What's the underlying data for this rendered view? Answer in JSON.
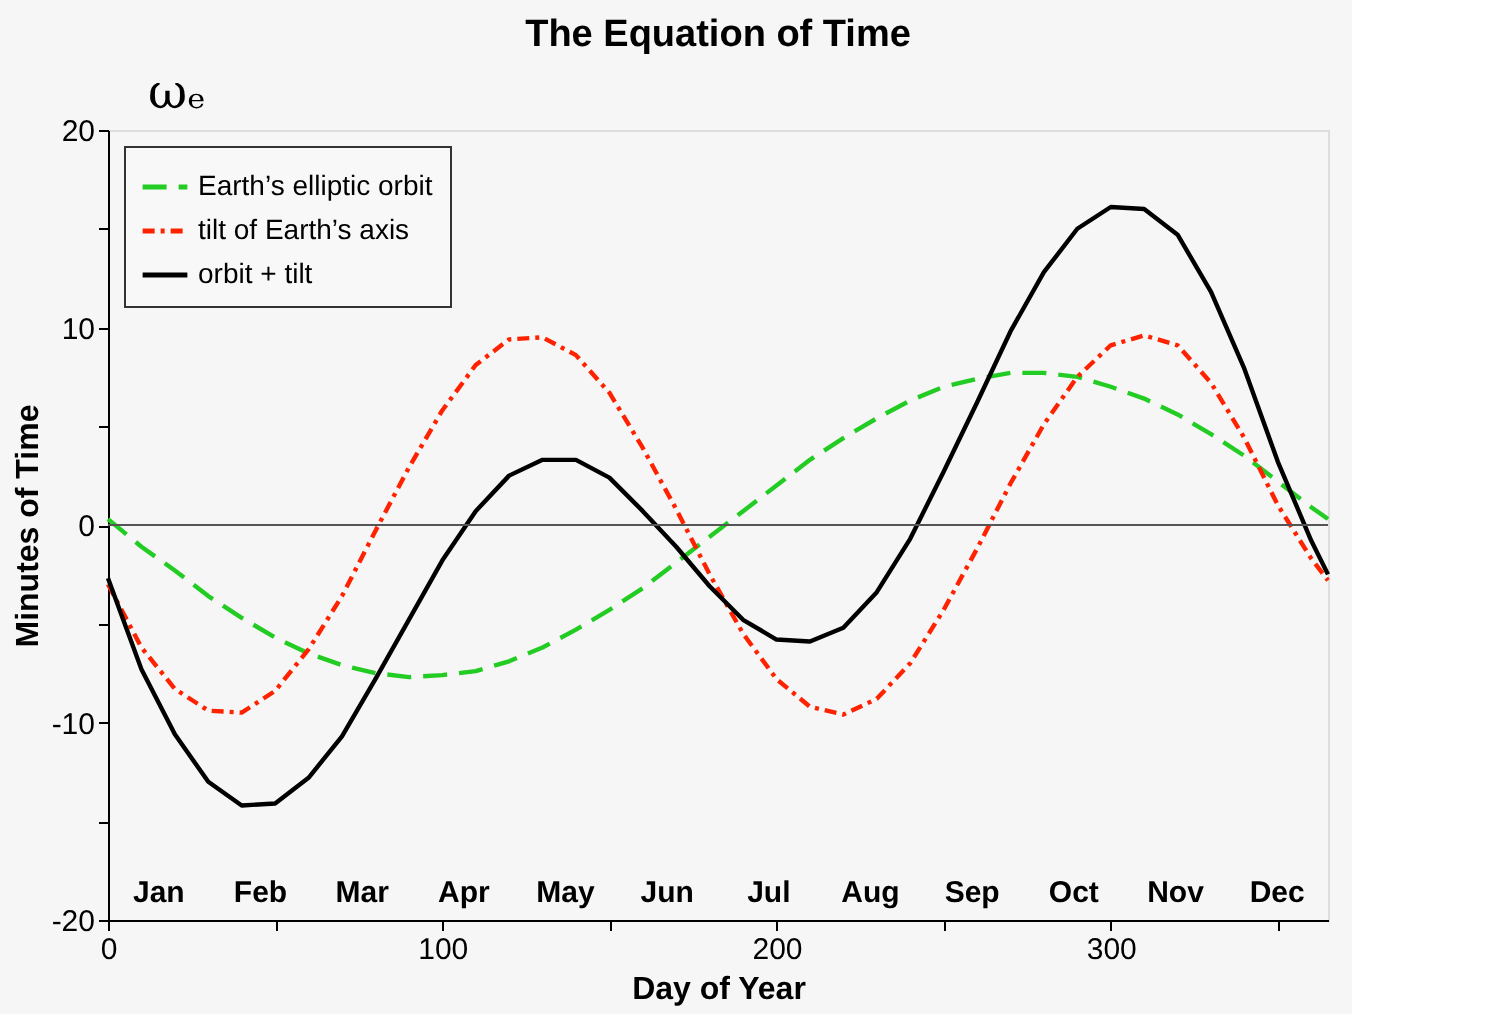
{
  "chart_data": {
    "type": "line",
    "title": "The Equation of Time",
    "xlabel": "Day of Year",
    "ylabel": "Minutes of Time",
    "x": [
      0,
      10,
      20,
      30,
      40,
      50,
      60,
      70,
      80,
      90,
      100,
      110,
      120,
      130,
      140,
      150,
      160,
      170,
      180,
      190,
      200,
      210,
      220,
      230,
      240,
      250,
      260,
      270,
      280,
      290,
      300,
      310,
      320,
      330,
      340,
      350,
      360,
      365
    ],
    "series": [
      {
        "name": "Earth’s elliptic orbit",
        "color": "#22cc22",
        "line_style": "dashed",
        "values": [
          0.3,
          -1.1,
          -2.3,
          -3.6,
          -4.7,
          -5.7,
          -6.5,
          -7.1,
          -7.5,
          -7.7,
          -7.6,
          -7.4,
          -6.9,
          -6.2,
          -5.3,
          -4.3,
          -3.2,
          -1.9,
          -0.6,
          0.7,
          2.0,
          3.3,
          4.4,
          5.4,
          6.3,
          7.0,
          7.4,
          7.7,
          7.7,
          7.5,
          7.0,
          6.4,
          5.6,
          4.6,
          3.5,
          2.2,
          0.9,
          0.3
        ]
      },
      {
        "name": "tilt of Earth’s axis",
        "color": "#ff2200",
        "line_style": "dashdot",
        "values": [
          -3.0,
          -6.2,
          -8.3,
          -9.4,
          -9.5,
          -8.4,
          -6.3,
          -3.6,
          -0.3,
          2.9,
          5.8,
          8.1,
          9.4,
          9.5,
          8.6,
          6.7,
          3.9,
          0.8,
          -2.5,
          -5.5,
          -7.8,
          -9.2,
          -9.6,
          -8.8,
          -7.0,
          -4.3,
          -1.2,
          2.1,
          5.1,
          7.5,
          9.1,
          9.6,
          9.1,
          7.2,
          4.4,
          1.0,
          -1.7,
          -2.8
        ]
      },
      {
        "name": "orbit + tilt",
        "color": "#000000",
        "line_style": "solid",
        "values": [
          -2.7,
          -7.3,
          -10.6,
          -13.0,
          -14.2,
          -14.1,
          -12.8,
          -10.7,
          -7.8,
          -4.8,
          -1.8,
          0.7,
          2.5,
          3.3,
          3.3,
          2.4,
          0.7,
          -1.1,
          -3.1,
          -4.8,
          -5.8,
          -5.9,
          -5.2,
          -3.4,
          -0.7,
          2.7,
          6.2,
          9.8,
          12.8,
          15.0,
          16.1,
          16.0,
          14.7,
          11.8,
          7.9,
          3.2,
          -0.8,
          -2.5
        ]
      }
    ],
    "xlim": [
      0,
      365
    ],
    "xticks": [
      0,
      {
        "value": 50,
        "label": null
      },
      100,
      {
        "value": 150,
        "label": null
      },
      200,
      {
        "value": 250,
        "label": null
      },
      300,
      {
        "value": 350,
        "label": null
      }
    ],
    "ylim": [
      -20,
      20
    ],
    "yticks": [
      -20,
      {
        "value": -15,
        "label": null
      },
      -10,
      {
        "value": -5,
        "label": null
      },
      0,
      {
        "value": 5,
        "label": null
      },
      10,
      {
        "value": 15,
        "label": null
      },
      20
    ],
    "ref_lines": [
      {
        "axis": "y",
        "value": 0,
        "color": "#555555"
      }
    ],
    "annotations": [
      "ωₑ",
      "Jan",
      "Feb",
      "Mar",
      "Apr",
      "May",
      "Jun",
      "Jul",
      "Aug",
      "Sep",
      "Oct",
      "Nov",
      "Dec"
    ],
    "legend": "top left",
    "grid": false,
    "marker": "none"
  }
}
